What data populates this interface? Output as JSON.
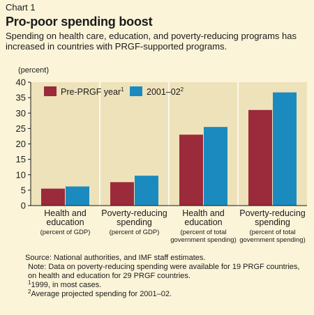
{
  "header": {
    "chart_label": "Chart 1",
    "title": "Pro-poor spending boost",
    "subtitle": "Spending on health care, education, and poverty-reducing programs has increased in countries with PRGF-supported programs."
  },
  "colors": {
    "background": "#fbf4d9",
    "panel": "#eee2ba",
    "pre_prgf": "#9b2a3a",
    "period_2001_02": "#1b8bbf"
  },
  "chart_data": {
    "type": "bar",
    "unit_label": "(percent)",
    "ylim": [
      0,
      40
    ],
    "yticks": [
      0,
      5,
      10,
      15,
      20,
      25,
      30,
      35,
      40
    ],
    "grid": false,
    "legend_position": "top-left",
    "categories": [
      {
        "line1": "Health and",
        "line2": "education",
        "note": "(percent of GDP)",
        "note2": ""
      },
      {
        "line1": "Poverty-reducing",
        "line2": "spending",
        "note": "(percent of GDP)",
        "note2": ""
      },
      {
        "line1": "Health and",
        "line2": "education",
        "note": "(percent of total",
        "note2": "government spending)"
      },
      {
        "line1": "Poverty-reducing",
        "line2": "spending",
        "note": "(percent of total",
        "note2": "government spending)"
      }
    ],
    "series": [
      {
        "name": "Pre-PRGF year",
        "footnote": "1",
        "values": [
          5.5,
          7.6,
          23.0,
          31.0
        ]
      },
      {
        "name": "2001–02",
        "footnote": "2",
        "values": [
          6.2,
          9.7,
          25.5,
          36.7
        ]
      }
    ]
  },
  "notes": {
    "source": "Source: National authorities, and IMF staff estimates.",
    "note": "Note: Data on poverty-reducing spending were available for 19 PRGF countries, on health and education for 29 PRGF countries.",
    "footnote1_mark": "1",
    "footnote1_text": "1999, in most cases.",
    "footnote2_mark": "2",
    "footnote2_text": "Average projected spending for 2001–02."
  }
}
